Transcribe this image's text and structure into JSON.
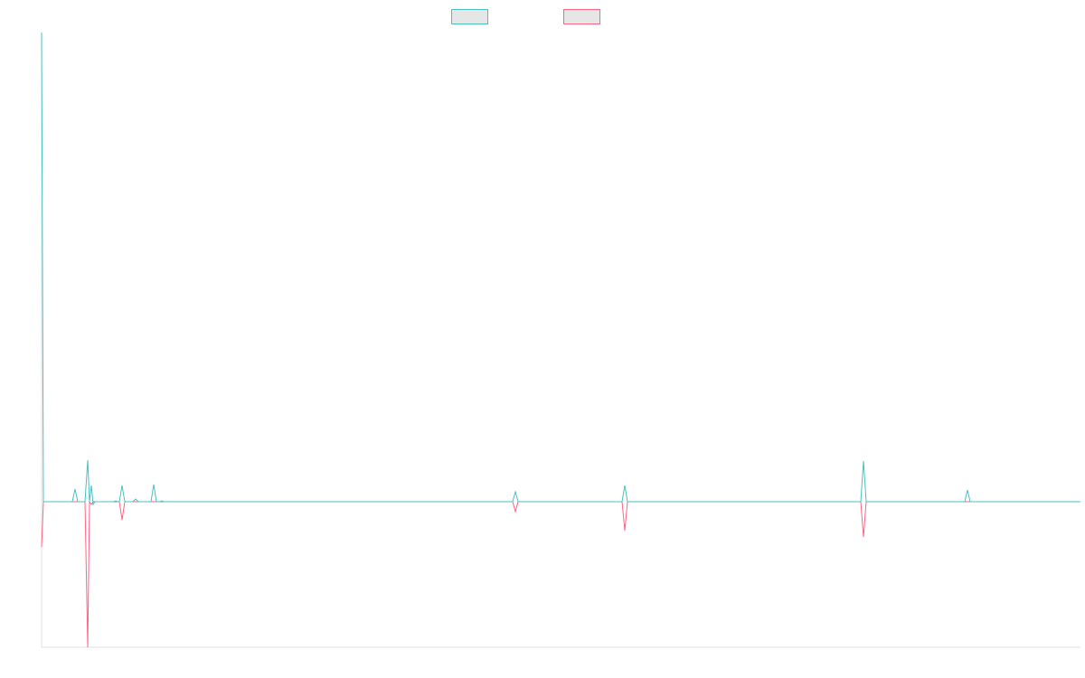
{
  "chart_data": {
    "type": "line",
    "x": [
      0,
      2,
      34,
      37,
      40,
      48,
      51,
      53,
      55,
      57,
      59,
      80,
      82,
      84,
      86,
      89,
      92,
      101,
      104,
      107,
      121,
      124,
      127,
      131,
      133,
      135,
      521,
      524,
      527,
      642,
      645,
      648,
      906,
      909,
      912,
      1021,
      1024,
      1027,
      1149
    ],
    "series": [
      {
        "color": "#ff6384",
        "values": [
          -50,
          0,
          0,
          0,
          0,
          0,
          -161,
          0,
          -3,
          0,
          0,
          0,
          0,
          0,
          0,
          -20,
          0,
          0,
          0,
          0,
          0,
          0,
          0,
          0,
          0,
          0,
          0,
          -11,
          0,
          0,
          -32,
          0,
          0,
          -39,
          0,
          0,
          0,
          0,
          0
        ]
      },
      {
        "color": "#4bc0c0",
        "values": [
          519,
          0,
          0,
          14,
          0,
          0,
          46,
          0,
          18,
          -3,
          0,
          0,
          1,
          0,
          0,
          18,
          0,
          0,
          3,
          0,
          0,
          19,
          0,
          0,
          1,
          0,
          0,
          11,
          0,
          0,
          18,
          0,
          0,
          45,
          0,
          0,
          13,
          0,
          0
        ]
      }
    ],
    "xlim": [
      0,
      1149
    ],
    "ylim": [
      -161,
      519
    ],
    "legend": "top"
  }
}
